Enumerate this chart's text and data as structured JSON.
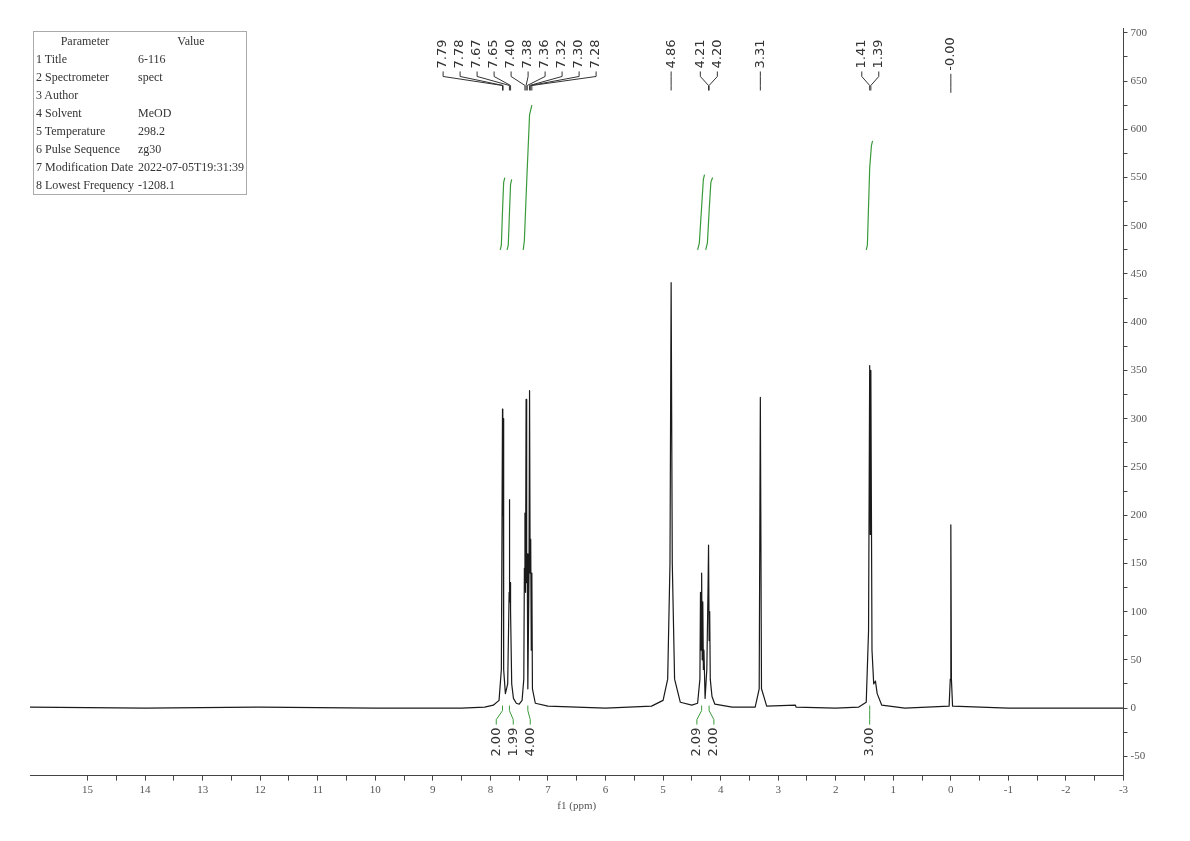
{
  "chart_data": {
    "type": "line",
    "xlabel": "f1 (ppm)",
    "xlim": [
      16,
      -3
    ],
    "ylim": [
      -70,
      705
    ],
    "xticks": [
      15,
      {
        "value": 14.5,
        "label": null
      },
      14,
      {
        "value": 13.5,
        "label": null
      },
      13,
      {
        "value": 12.5,
        "label": null
      },
      12,
      {
        "value": 11.5,
        "label": null
      },
      11,
      {
        "value": 10.5,
        "label": null
      },
      10,
      {
        "value": 9.5,
        "label": null
      },
      9,
      {
        "value": 8.5,
        "label": null
      },
      8,
      {
        "value": 7.5,
        "label": null
      },
      7,
      {
        "value": 6.5,
        "label": null
      },
      6,
      {
        "value": 5.5,
        "label": null
      },
      5,
      {
        "value": 4.5,
        "label": null
      },
      4,
      {
        "value": 3.5,
        "label": null
      },
      3,
      {
        "value": 2.5,
        "label": null
      },
      2,
      {
        "value": 1.5,
        "label": null
      },
      1,
      {
        "value": 0.5,
        "label": null
      },
      0,
      {
        "value": -0.5,
        "label": null
      },
      -1,
      {
        "value": -1.5,
        "label": null
      },
      -2,
      {
        "value": -2.5,
        "label": null
      },
      -3
    ],
    "yticks": [
      -50,
      {
        "value": -25,
        "label": null
      },
      0,
      {
        "value": 25,
        "label": null
      },
      50,
      {
        "value": 75,
        "label": null
      },
      100,
      {
        "value": 125,
        "label": null
      },
      150,
      {
        "value": 175,
        "label": null
      },
      200,
      {
        "value": 225,
        "label": null
      },
      250,
      {
        "value": 275,
        "label": null
      },
      300,
      {
        "value": 325,
        "label": null
      },
      350,
      {
        "value": 375,
        "label": null
      },
      400,
      {
        "value": 425,
        "label": null
      },
      450,
      {
        "value": 475,
        "label": null
      },
      500,
      {
        "value": 525,
        "label": null
      },
      550,
      {
        "value": 575,
        "label": null
      },
      600,
      {
        "value": 625,
        "label": null
      },
      650,
      {
        "value": 675,
        "label": null
      },
      700
    ],
    "grid": false,
    "legend": false,
    "marker": "none",
    "line_style": "solid",
    "series": [
      {
        "color": "#1a1a1a",
        "x": [
          16,
          14,
          12,
          10,
          9,
          8.5,
          8.1,
          7.95,
          7.85,
          7.81,
          7.79,
          7.785,
          7.78,
          7.77,
          7.74,
          7.7,
          7.675,
          7.67,
          7.665,
          7.655,
          7.65,
          7.63,
          7.6,
          7.55,
          7.5,
          7.45,
          7.42,
          7.41,
          7.4,
          7.39,
          7.38,
          7.37,
          7.36,
          7.35,
          7.33,
          7.32,
          7.31,
          7.3,
          7.29,
          7.28,
          7.27,
          7.22,
          7,
          6,
          5.2,
          5,
          4.92,
          4.88,
          4.86,
          4.84,
          4.8,
          4.7,
          4.5,
          4.4,
          4.36,
          4.35,
          4.34,
          4.33,
          4.32,
          4.31,
          4.3,
          4.29,
          4.27,
          4.24,
          4.22,
          4.21,
          4.2,
          4.19,
          4.18,
          4.15,
          4.1,
          3.8,
          3.4,
          3.33,
          3.31,
          3.29,
          3.2,
          2.7,
          2.69,
          2,
          1.6,
          1.47,
          1.43,
          1.41,
          1.4,
          1.39,
          1.37,
          1.34,
          1.31,
          1.28,
          1.2,
          0.8,
          0.03,
          0.01,
          0,
          -0.01,
          -0.03,
          -1,
          -3
        ],
        "values": [
          1,
          0,
          1,
          0,
          0,
          0,
          1,
          3,
          8,
          40,
          310,
          200,
          300,
          40,
          15,
          25,
          120,
          216,
          110,
          130,
          100,
          25,
          10,
          5,
          4,
          8,
          30,
          145,
          202,
          120,
          320,
          130,
          160,
          20,
          135,
          329,
          140,
          175,
          60,
          140,
          20,
          5,
          2,
          0,
          2,
          8,
          30,
          150,
          441,
          150,
          30,
          6,
          3,
          5,
          30,
          120,
          60,
          140,
          50,
          110,
          40,
          60,
          10,
          40,
          120,
          169,
          70,
          100,
          30,
          12,
          4,
          1,
          1,
          20,
          322,
          20,
          2,
          3,
          1,
          0,
          1,
          6,
          80,
          355,
          180,
          350,
          60,
          25,
          28,
          15,
          3,
          0,
          2,
          30,
          190,
          30,
          2,
          0,
          0
        ]
      },
      {
        "color": "#3a9a3a",
        "x": [
          7.83,
          7.81,
          7.79,
          7.77,
          7.75
        ],
        "values": [
          475,
          480,
          515,
          545,
          550
        ]
      },
      {
        "color": "#3a9a3a",
        "x": [
          7.71,
          7.69,
          7.67,
          7.65,
          7.63
        ],
        "values": [
          475,
          480,
          512,
          543,
          548
        ]
      },
      {
        "color": "#3a9a3a",
        "x": [
          7.43,
          7.41,
          7.37,
          7.32,
          7.28
        ],
        "values": [
          475,
          485,
          545,
          615,
          625
        ]
      },
      {
        "color": "#3a9a3a",
        "x": [
          4.4,
          4.37,
          4.33,
          4.3,
          4.28
        ],
        "values": [
          475,
          482,
          520,
          548,
          553
        ]
      },
      {
        "color": "#3a9a3a",
        "x": [
          4.26,
          4.23,
          4.2,
          4.17,
          4.14
        ],
        "values": [
          475,
          482,
          515,
          545,
          550
        ]
      },
      {
        "color": "#3a9a3a",
        "x": [
          1.47,
          1.45,
          1.41,
          1.38,
          1.36
        ],
        "values": [
          475,
          480,
          560,
          583,
          588
        ]
      }
    ],
    "annotations": [
      "Parameter\tValue",
      "1 Title\t6-116",
      "2 Spectrometer\tspect",
      "3 Author",
      "4 Solvent\tMeOD",
      "5 Temperature\t298.2",
      "6 Pulse Sequence\tzg30",
      "7 Modification Date\t2022-07-05T19:31:39",
      "8 Lowest Frequency\t-1208.1",
      {
        "text": "7.79",
        "x": 7.79
      },
      {
        "text": "7.78",
        "x": 7.78
      },
      {
        "text": "7.67",
        "x": 7.67
      },
      {
        "text": "7.65",
        "x": 7.65
      },
      {
        "text": "7.40",
        "x": 7.4
      },
      {
        "text": "7.38",
        "x": 7.38
      },
      {
        "text": "7.36",
        "x": 7.36
      },
      {
        "text": "7.32",
        "x": 7.32
      },
      {
        "text": "7.30",
        "x": 7.3
      },
      {
        "text": "7.28",
        "x": 7.28
      },
      {
        "text": "4.86",
        "x": 4.86
      },
      {
        "text": "4.21",
        "x": 4.21
      },
      {
        "text": "4.20",
        "x": 4.2
      },
      {
        "text": "3.31",
        "x": 3.31
      },
      {
        "text": "1.41",
        "x": 1.41
      },
      {
        "text": "1.39",
        "x": 1.39
      },
      {
        "text": "-0.00",
        "x": 0
      },
      {
        "text": "2.00",
        "x": 7.79
      },
      {
        "text": "1.99",
        "x": 7.67
      },
      {
        "text": "4.00",
        "x": 7.35
      },
      {
        "text": "2.09",
        "x": 4.33
      },
      {
        "text": "2.00",
        "x": 4.2
      },
      {
        "text": "3.00",
        "x": 1.41
      }
    ]
  }
}
